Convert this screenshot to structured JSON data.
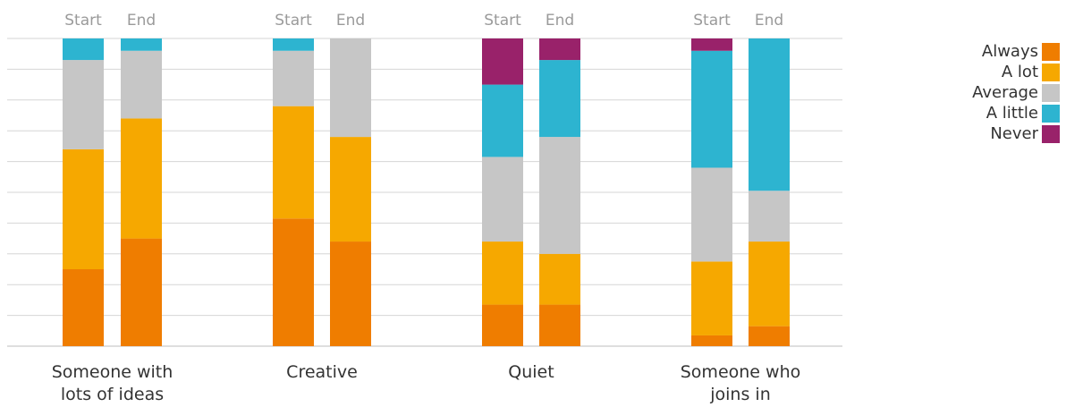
{
  "chart_data": {
    "type": "bar",
    "stacked": true,
    "normalized_to": 100,
    "groups": [
      {
        "label": "Someone with lots of ideas",
        "label_lines": [
          "Someone with",
          "lots of ideas"
        ],
        "bars": [
          {
            "label": "Start",
            "values": [
              25,
              39,
              29,
              7,
              0
            ]
          },
          {
            "label": "End",
            "values": [
              35,
              39,
              22,
              4,
              0
            ]
          }
        ]
      },
      {
        "label": "Creative",
        "label_lines": [
          "Creative"
        ],
        "bars": [
          {
            "label": "Start",
            "values": [
              41.5,
              36.5,
              18,
              4,
              0
            ]
          },
          {
            "label": "End",
            "values": [
              34,
              34,
              32,
              0,
              0
            ]
          }
        ]
      },
      {
        "label": "Quiet",
        "label_lines": [
          "Quiet"
        ],
        "bars": [
          {
            "label": "Start",
            "values": [
              13.5,
              20.5,
              27.5,
              23.5,
              15
            ]
          },
          {
            "label": "End",
            "values": [
              13.5,
              16.5,
              38,
              25,
              7
            ]
          }
        ]
      },
      {
        "label": "Someone who joins in",
        "label_lines": [
          "Someone who",
          "joins in"
        ],
        "bars": [
          {
            "label": "Start",
            "values": [
              3.5,
              24,
              30.5,
              38,
              4
            ]
          },
          {
            "label": "End",
            "values": [
              6.5,
              27.5,
              16.5,
              49.5,
              0
            ]
          }
        ]
      }
    ],
    "series": [
      {
        "name": "Always",
        "color": "#EF7D00"
      },
      {
        "name": "A lot",
        "color": "#F6A800"
      },
      {
        "name": "Average",
        "color": "#C6C6C6"
      },
      {
        "name": "A little",
        "color": "#2DB4D0"
      },
      {
        "name": "Never",
        "color": "#99226A"
      }
    ],
    "ylim": [
      0,
      100
    ],
    "grid": true,
    "legend_position": "top-right"
  }
}
